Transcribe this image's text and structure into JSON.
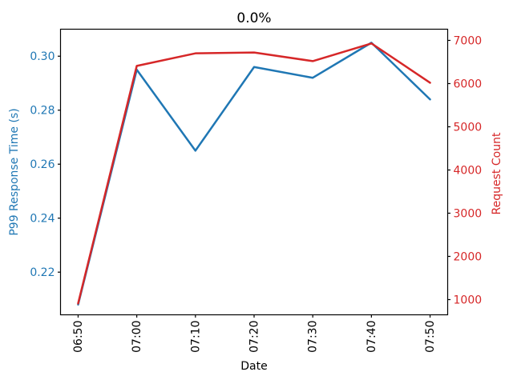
{
  "chart_data": {
    "type": "line",
    "title": "0.0%",
    "xlabel": "Date",
    "categories": [
      "06:50",
      "07:00",
      "07:10",
      "07:20",
      "07:30",
      "07:40",
      "07:50"
    ],
    "series": [
      {
        "name": "P99 Response Time (s)",
        "axis": "left",
        "color": "#1f77b4",
        "values": [
          0.208,
          0.295,
          0.265,
          0.296,
          0.292,
          0.305,
          0.284
        ]
      },
      {
        "name": "Request Count",
        "axis": "right",
        "color": "#d62728",
        "values": [
          910,
          6410,
          6700,
          6720,
          6520,
          6930,
          6020
        ]
      }
    ],
    "left_axis": {
      "label": "P99 Response Time (s)",
      "color": "#1f77b4",
      "ticks": [
        0.22,
        0.24,
        0.26,
        0.28,
        0.3
      ],
      "tick_labels": [
        "0.22",
        "0.24",
        "0.26",
        "0.28",
        "0.30"
      ],
      "ylim": [
        0.2042,
        0.31
      ]
    },
    "right_axis": {
      "label": "Request Count",
      "color": "#d62728",
      "ticks": [
        1000,
        2000,
        3000,
        4000,
        5000,
        6000,
        7000
      ],
      "tick_labels": [
        "1000",
        "2000",
        "3000",
        "4000",
        "5000",
        "6000",
        "7000"
      ],
      "ylim": [
        648,
        7259
      ]
    },
    "x_axis": {
      "label": "Date",
      "xlim": [
        -0.3,
        6.3
      ],
      "tick_rotation": 90
    },
    "legend": "none",
    "grid": false,
    "spine_color": "#000000",
    "title_color": "#000000"
  }
}
